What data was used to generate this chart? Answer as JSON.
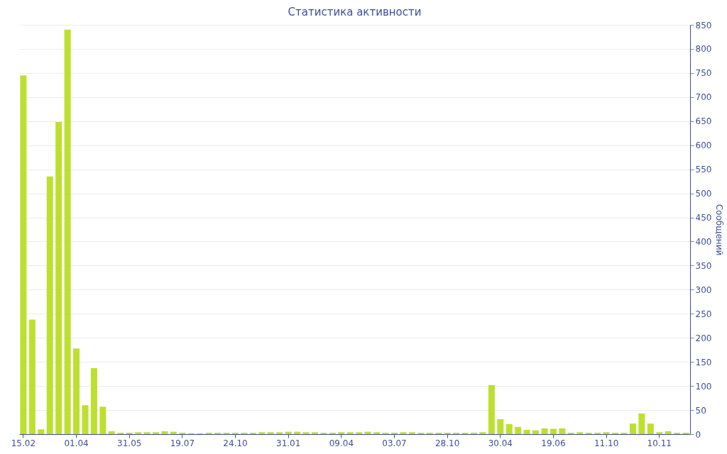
{
  "chart_data": {
    "type": "bar",
    "title": "Статистика активности",
    "y2label": "Сообщений",
    "categories": [
      "15.02",
      null,
      null,
      null,
      null,
      null,
      "01.04",
      null,
      null,
      null,
      null,
      null,
      "31.05",
      null,
      null,
      null,
      null,
      null,
      "19.07",
      null,
      null,
      null,
      null,
      null,
      "24.10",
      null,
      null,
      null,
      null,
      null,
      "31.01",
      null,
      null,
      null,
      null,
      null,
      "09.04",
      null,
      null,
      null,
      null,
      null,
      "03.07",
      null,
      null,
      null,
      null,
      null,
      "28.10",
      null,
      null,
      null,
      null,
      null,
      "30.04",
      null,
      null,
      null,
      null,
      null,
      "19.06",
      null,
      null,
      null,
      null,
      null,
      "11.10",
      null,
      null,
      null,
      null,
      null,
      "10.11",
      null,
      null,
      null
    ],
    "series": [
      {
        "axis": "y2",
        "color": "#bde030",
        "values": [
          745,
          238,
          10,
          535,
          648,
          840,
          178,
          60,
          137,
          57,
          6,
          3,
          3,
          4,
          4,
          4,
          6,
          5,
          3,
          2,
          2,
          3,
          3,
          3,
          3,
          3,
          3,
          4,
          4,
          4,
          5,
          5,
          4,
          4,
          3,
          3,
          4,
          4,
          4,
          5,
          4,
          3,
          3,
          4,
          4,
          3,
          3,
          3,
          3,
          3,
          3,
          3,
          4,
          102,
          31,
          21,
          15,
          9,
          8,
          12,
          11,
          12,
          3,
          4,
          3,
          3,
          4,
          3,
          3,
          22,
          43,
          22,
          4,
          6,
          3,
          3
        ]
      }
    ],
    "y2lim": [
      0,
      850
    ],
    "y2ticks": [
      0,
      50,
      100,
      150,
      200,
      250,
      300,
      350,
      400,
      450,
      500,
      550,
      600,
      650,
      700,
      750,
      800,
      850
    ],
    "grid": "y"
  }
}
